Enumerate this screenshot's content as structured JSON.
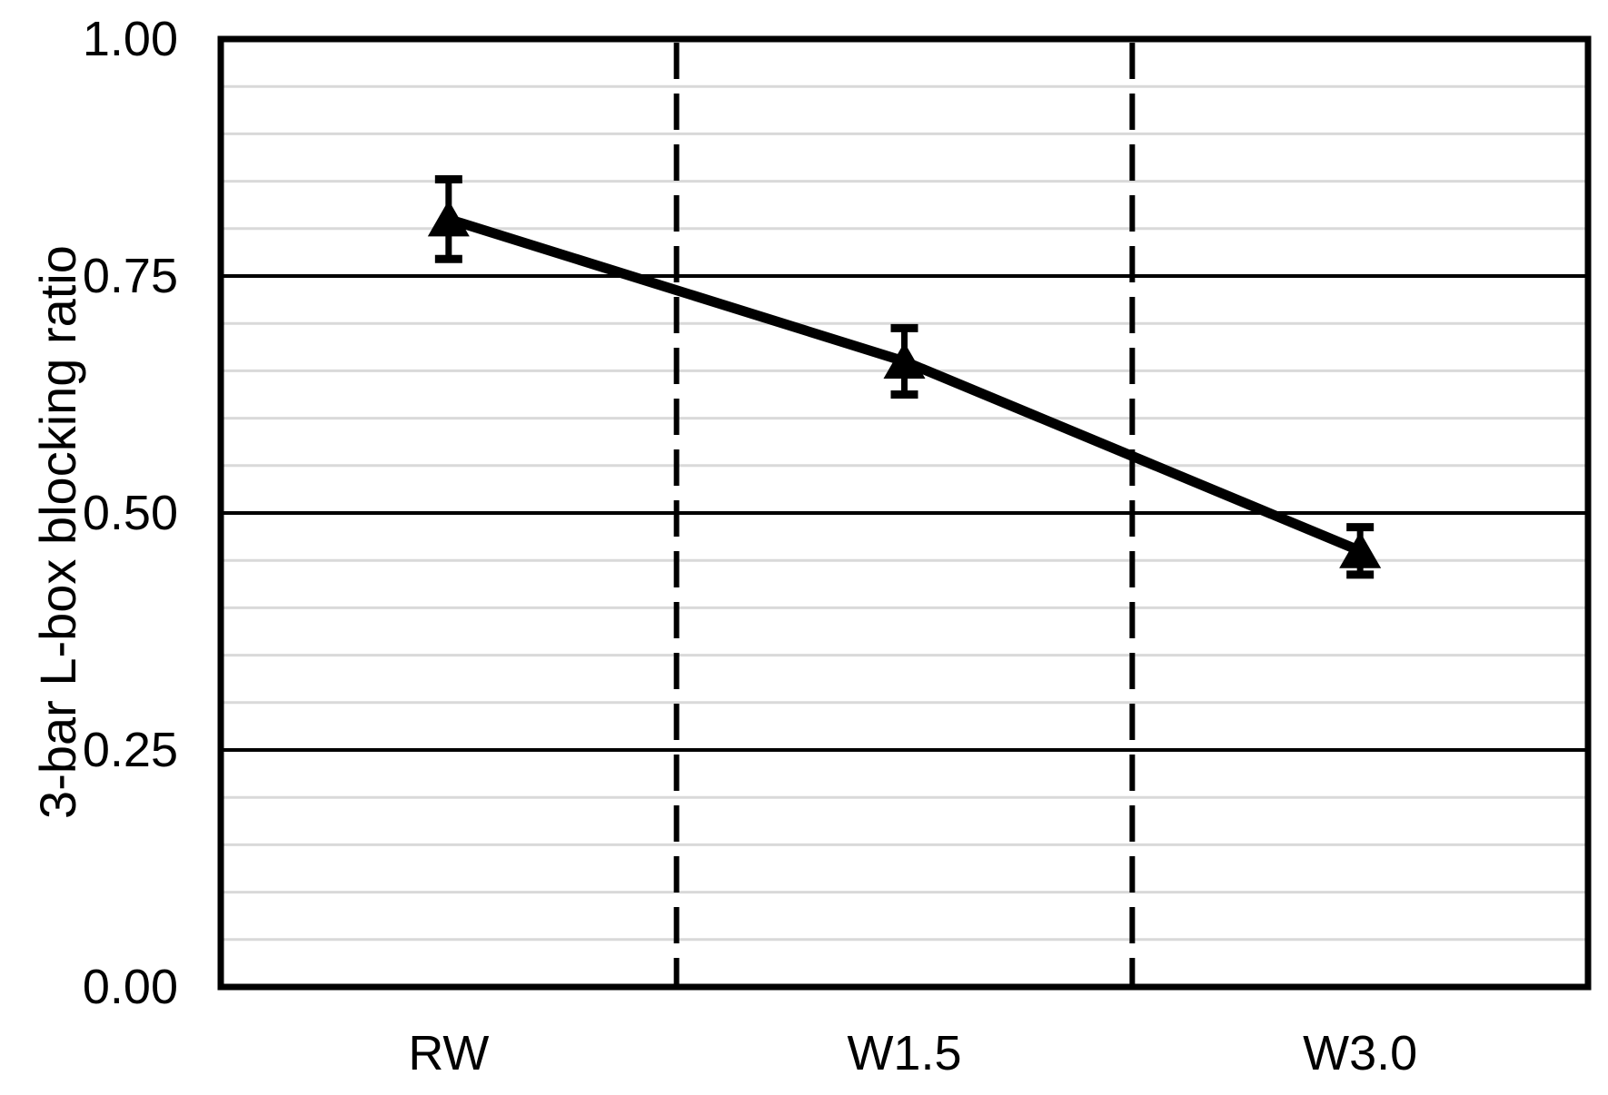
{
  "chart_data": {
    "type": "line",
    "title": "",
    "categories": [
      "RW",
      "W1.5",
      "W3.0"
    ],
    "series": [
      {
        "name": "3-bar L-box blocking ratio",
        "values": [
          0.81,
          0.66,
          0.46
        ],
        "error": [
          0.042,
          0.035,
          0.025
        ]
      }
    ],
    "xlabel": "",
    "ylabel": "3-bar L-box blocking ratio",
    "ylim": [
      0.0,
      1.0
    ],
    "y_major_step": 0.25,
    "y_minor_step": 0.05,
    "y_tick_labels": [
      "0.00",
      "0.25",
      "0.50",
      "0.75",
      "1.00"
    ],
    "grid": "horizontal major (black) + minor (light gray)",
    "legend": "none",
    "marker": "filled-triangle-up",
    "error_bars": "vertical with end caps",
    "separators": "dashed vertical lines between category bands",
    "colors": {
      "series_line": "#000000",
      "marker_fill": "#000000",
      "error_bar": "#000000",
      "major_gridline": "#000000",
      "minor_gridline": "#D9D9D9",
      "axis_border": "#000000",
      "separator": "#000000",
      "text": "#000000",
      "background": "#FFFFFF"
    }
  }
}
